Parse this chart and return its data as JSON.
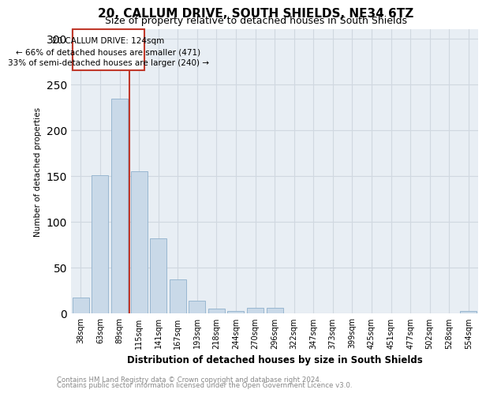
{
  "title": "20, CALLUM DRIVE, SOUTH SHIELDS, NE34 6TZ",
  "subtitle": "Size of property relative to detached houses in South Shields",
  "xlabel": "Distribution of detached houses by size in South Shields",
  "ylabel": "Number of detached properties",
  "footer_line1": "Contains HM Land Registry data © Crown copyright and database right 2024.",
  "footer_line2": "Contains public sector information licensed under the Open Government Licence v3.0.",
  "categories": [
    "38sqm",
    "63sqm",
    "89sqm",
    "115sqm",
    "141sqm",
    "167sqm",
    "193sqm",
    "218sqm",
    "244sqm",
    "270sqm",
    "296sqm",
    "322sqm",
    "347sqm",
    "373sqm",
    "399sqm",
    "425sqm",
    "451sqm",
    "477sqm",
    "502sqm",
    "528sqm",
    "554sqm"
  ],
  "values": [
    17,
    151,
    234,
    155,
    82,
    37,
    14,
    5,
    3,
    6,
    6,
    0,
    0,
    0,
    0,
    0,
    0,
    0,
    0,
    0,
    3
  ],
  "bar_color": "#c9d9e8",
  "bar_edge_color": "#8fb0cc",
  "vline_x": 2.5,
  "vline_color": "#c0392b",
  "annotation_line1": "20 CALLUM DRIVE: 124sqm",
  "annotation_line2": "← 66% of detached houses are smaller (471)",
  "annotation_line3": "33% of semi-detached houses are larger (240) →",
  "ylim": [
    0,
    310
  ],
  "yticks": [
    0,
    50,
    100,
    150,
    200,
    250,
    300
  ],
  "grid_color": "#d0d8e0",
  "plot_bg_color": "#e8eef4",
  "title_fontsize": 11,
  "subtitle_fontsize": 9
}
